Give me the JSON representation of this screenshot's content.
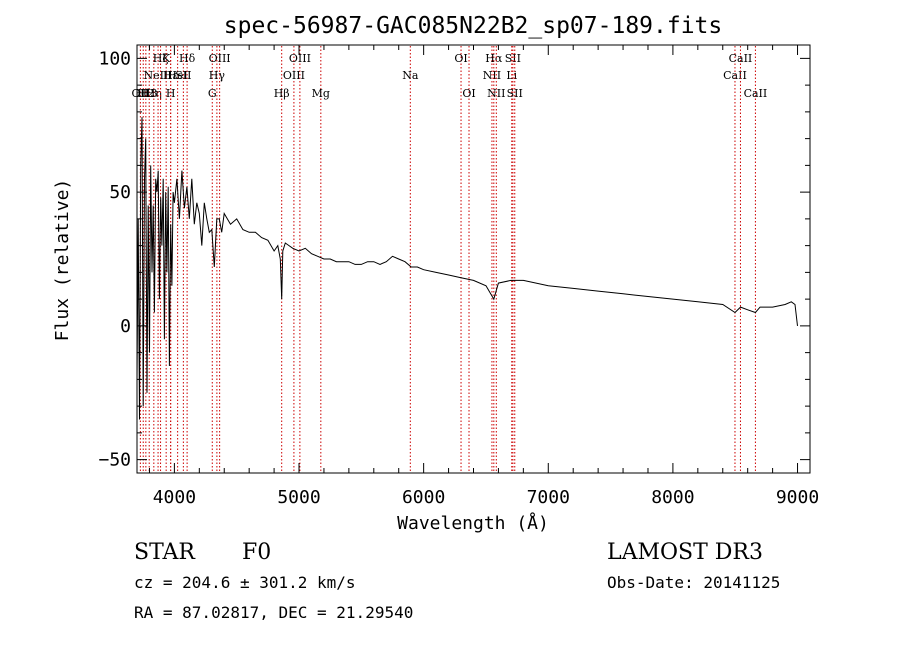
{
  "chart_data": {
    "type": "line",
    "title": "spec-56987-GAC085N22B2_sp07-189.fits",
    "xlabel": "Wavelength (Å)",
    "ylabel": "Flux (relative)",
    "xlim": [
      3700,
      9100
    ],
    "ylim": [
      -55,
      105
    ],
    "x_ticks": [
      {
        "value": 4000,
        "label": "4000"
      },
      {
        "value": 5000,
        "label": "5000"
      },
      {
        "value": 6000,
        "label": "6000"
      },
      {
        "value": 7000,
        "label": "7000"
      },
      {
        "value": 8000,
        "label": "8000"
      },
      {
        "value": 9000,
        "label": "9000"
      }
    ],
    "y_ticks": [
      {
        "value": -50,
        "label": "−50"
      },
      {
        "value": 0,
        "label": "0"
      },
      {
        "value": 50,
        "label": "50"
      },
      {
        "value": 100,
        "label": "100"
      }
    ],
    "line_color": "#000000",
    "marker_color": "#cc0000",
    "series": [
      {
        "name": "flux",
        "x": [
          3700,
          3710,
          3720,
          3730,
          3740,
          3750,
          3760,
          3770,
          3780,
          3790,
          3800,
          3810,
          3820,
          3830,
          3840,
          3850,
          3860,
          3870,
          3880,
          3890,
          3900,
          3910,
          3920,
          3930,
          3940,
          3950,
          3960,
          3970,
          3980,
          3990,
          4000,
          4020,
          4040,
          4060,
          4080,
          4100,
          4120,
          4140,
          4160,
          4180,
          4200,
          4220,
          4240,
          4260,
          4280,
          4300,
          4320,
          4340,
          4360,
          4380,
          4400,
          4450,
          4500,
          4550,
          4600,
          4650,
          4700,
          4750,
          4800,
          4830,
          4850,
          4861,
          4870,
          4890,
          4920,
          4950,
          5000,
          5050,
          5100,
          5150,
          5200,
          5250,
          5300,
          5350,
          5400,
          5450,
          5500,
          5550,
          5600,
          5650,
          5700,
          5750,
          5800,
          5850,
          5900,
          5950,
          6000,
          6100,
          6200,
          6300,
          6400,
          6500,
          6563,
          6600,
          6700,
          6800,
          7000,
          7200,
          7400,
          7600,
          7800,
          8000,
          8200,
          8400,
          8498,
          8542,
          8600,
          8662,
          8700,
          8800,
          8900,
          8950,
          8980,
          9000
        ],
        "y": [
          -20,
          40,
          -35,
          60,
          78,
          -30,
          55,
          70,
          -25,
          45,
          -10,
          60,
          20,
          45,
          5,
          55,
          50,
          58,
          10,
          48,
          30,
          55,
          -5,
          50,
          20,
          52,
          -15,
          38,
          15,
          50,
          46,
          55,
          40,
          58,
          44,
          52,
          40,
          55,
          38,
          46,
          42,
          30,
          46,
          40,
          35,
          36,
          22,
          40,
          40,
          35,
          42,
          38,
          40,
          36,
          35,
          35,
          33,
          32,
          28,
          30,
          25,
          10,
          28,
          31,
          30,
          29,
          28,
          29,
          27,
          26,
          25,
          25,
          24,
          24,
          24,
          23,
          23,
          24,
          24,
          23,
          24,
          26,
          25,
          24,
          22,
          22,
          21,
          20,
          19,
          18,
          17,
          15,
          10,
          16,
          17,
          17,
          15,
          14,
          13,
          12,
          11,
          10,
          9,
          8,
          5,
          7,
          6,
          5,
          7,
          7,
          8,
          9,
          8,
          0
        ]
      }
    ],
    "line_markers": [
      {
        "wl": 3727,
        "label": "OII",
        "row": 3
      },
      {
        "wl": 3750,
        "label": "H1",
        "row": 3
      },
      {
        "wl": 3771,
        "label": "H2",
        "row": 3
      },
      {
        "wl": 3798,
        "label": "H3",
        "row": 3
      },
      {
        "wl": 3835,
        "label": "Hη",
        "row": 3
      },
      {
        "wl": 3869,
        "label": "NeIII",
        "row": 2
      },
      {
        "wl": 3889,
        "label": "Hζ",
        "row": 1
      },
      {
        "wl": 3934,
        "label": "K",
        "row": 1
      },
      {
        "wl": 3970,
        "label": "H",
        "row": 3
      },
      {
        "wl": 3970,
        "label": "Hε",
        "row": 2
      },
      {
        "wl": 4026,
        "label": "HeI",
        "row": 2
      },
      {
        "wl": 4102,
        "label": "Hδ",
        "row": 1
      },
      {
        "wl": 4072,
        "label": "SII",
        "row": 2
      },
      {
        "wl": 4304,
        "label": "G",
        "row": 3
      },
      {
        "wl": 4341,
        "label": "Hγ",
        "row": 2
      },
      {
        "wl": 4363,
        "label": "OIII",
        "row": 1
      },
      {
        "wl": 4861,
        "label": "Hβ",
        "row": 3
      },
      {
        "wl": 4959,
        "label": "OIII",
        "row": 2
      },
      {
        "wl": 5007,
        "label": "OIII",
        "row": 1
      },
      {
        "wl": 5175,
        "label": "Mg",
        "row": 3
      },
      {
        "wl": 5893,
        "label": "Na",
        "row": 2
      },
      {
        "wl": 6300,
        "label": "OI",
        "row": 1
      },
      {
        "wl": 6364,
        "label": "OI",
        "row": 3
      },
      {
        "wl": 6548,
        "label": "NII",
        "row": 2
      },
      {
        "wl": 6563,
        "label": "Hα",
        "row": 1
      },
      {
        "wl": 6583,
        "label": "NII",
        "row": 3
      },
      {
        "wl": 6707,
        "label": "Li",
        "row": 2
      },
      {
        "wl": 6716,
        "label": "SII",
        "row": 1
      },
      {
        "wl": 6731,
        "label": "SII",
        "row": 3
      },
      {
        "wl": 8498,
        "label": "CaII",
        "row": 2
      },
      {
        "wl": 8542,
        "label": "CaII",
        "row": 1
      },
      {
        "wl": 8662,
        "label": "CaII",
        "row": 3
      }
    ]
  },
  "info": {
    "object_class": "STAR",
    "subclass": "F0",
    "survey": "LAMOST DR3",
    "cz": "cz = 204.6 ± 301.2 km/s",
    "obs_date": "Obs-Date: 20141125",
    "coords": "RA =  87.02817, DEC =  21.29540"
  }
}
